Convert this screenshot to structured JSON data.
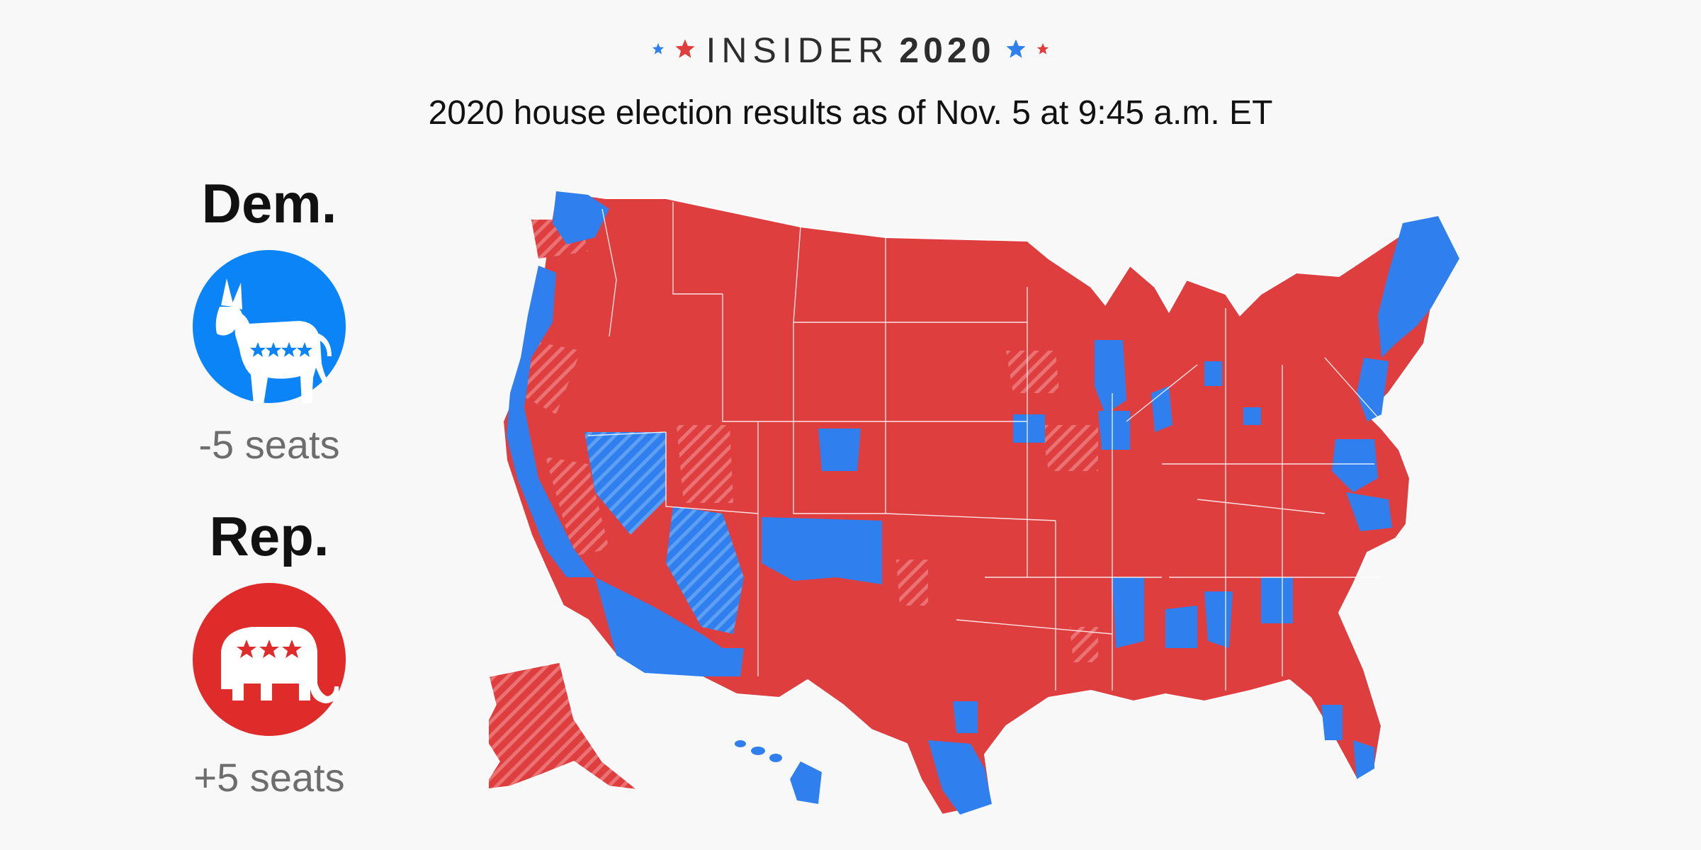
{
  "header": {
    "brand_word": "INSIDER",
    "brand_year": "2020",
    "title": "2020 house election results as of Nov. 5 at 9:45 a.m. ET"
  },
  "parties": {
    "dem": {
      "name": "Dem.",
      "seats": "-5 seats",
      "color": "#0a84f7",
      "icon": "donkey-icon"
    },
    "rep": {
      "name": "Rep.",
      "seats": "+5 seats",
      "color": "#e02b2b",
      "icon": "elephant-icon"
    }
  },
  "map": {
    "rep_color": "#df3e3f",
    "dem_color": "#2f80ee",
    "border_color": "#ffffff",
    "background": "#f8f8f8",
    "hatched_legend_note": ""
  }
}
